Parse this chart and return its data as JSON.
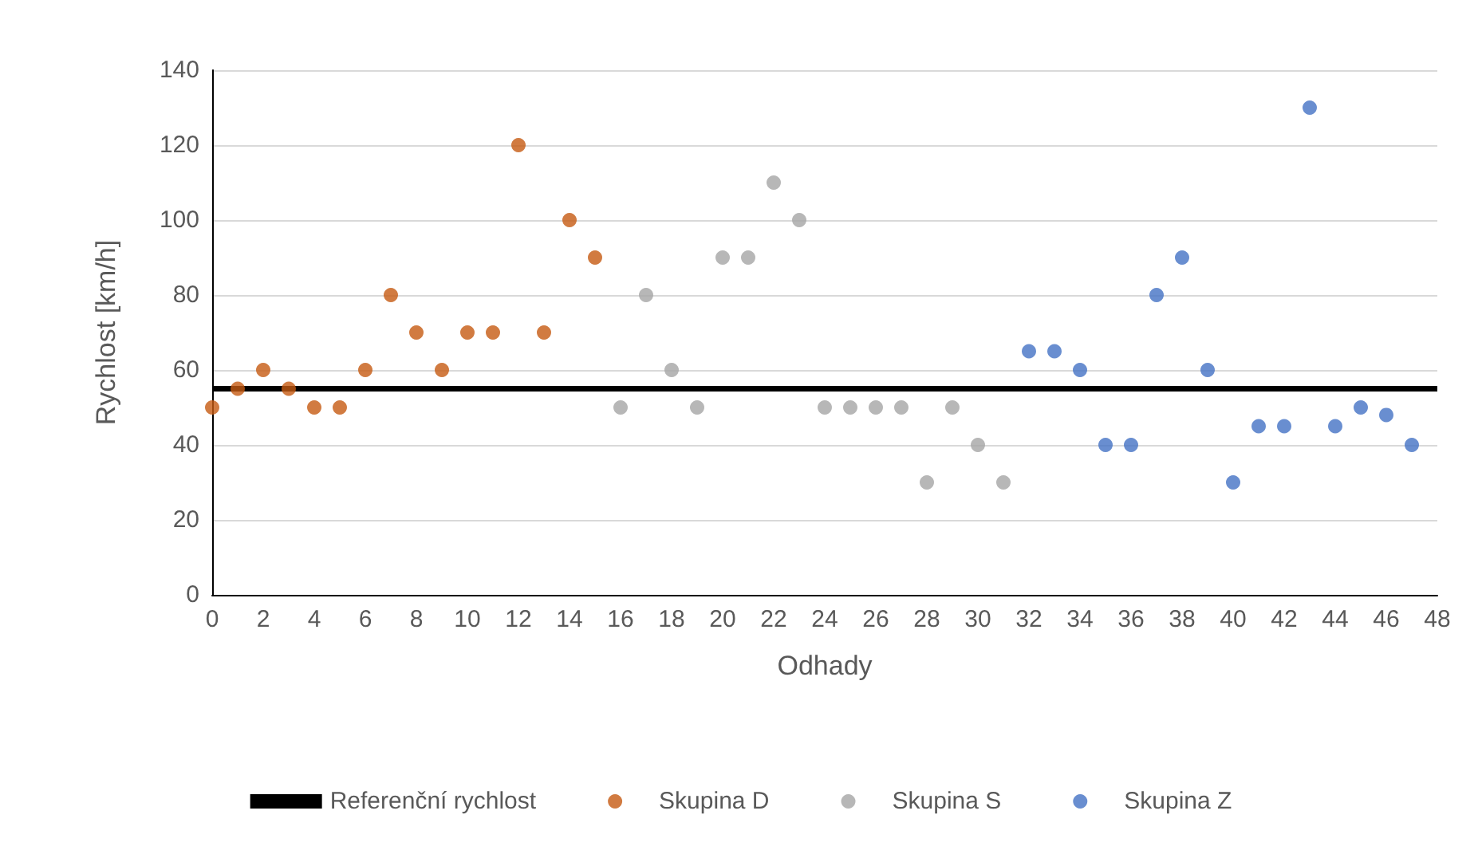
{
  "chart_data": {
    "type": "scatter",
    "xlabel": "Odhady",
    "ylabel": "Rychlost [km/h]",
    "xlim": [
      0,
      48
    ],
    "xticks": [
      0,
      2,
      4,
      6,
      8,
      10,
      12,
      14,
      16,
      18,
      20,
      22,
      24,
      26,
      28,
      30,
      32,
      34,
      36,
      38,
      40,
      42,
      44,
      46,
      48
    ],
    "ylim": [
      0,
      140
    ],
    "yticks": [
      0,
      20,
      40,
      60,
      80,
      100,
      120,
      140
    ],
    "grid": "y",
    "legend": "bottom",
    "marker": "circle",
    "series": [
      {
        "name": "Referenční rychlost",
        "type": "line",
        "color": "#000000",
        "line_style": "solid",
        "marker": "none",
        "x": [
          0,
          48
        ],
        "values": [
          55,
          55
        ]
      },
      {
        "name": "Skupina D",
        "color": "#c55a11",
        "x": [
          0,
          1,
          2,
          3,
          4,
          5,
          6,
          7,
          8,
          9,
          10,
          11,
          12,
          13,
          14,
          15
        ],
        "values": [
          50,
          55,
          60,
          55,
          50,
          50,
          60,
          80,
          70,
          60,
          70,
          70,
          120,
          70,
          100,
          90
        ]
      },
      {
        "name": "Skupina S",
        "color": "#a5a5a5",
        "x": [
          16,
          17,
          18,
          19,
          20,
          21,
          22,
          23,
          24,
          25,
          26,
          27,
          28,
          29,
          30,
          31
        ],
        "values": [
          50,
          80,
          60,
          50,
          90,
          90,
          110,
          100,
          50,
          50,
          50,
          50,
          30,
          50,
          40,
          30
        ]
      },
      {
        "name": "Skupina Z",
        "color": "#4472c4",
        "x": [
          32,
          33,
          34,
          35,
          36,
          37,
          38,
          39,
          40,
          41,
          42,
          43,
          44,
          45,
          46,
          47
        ],
        "values": [
          65,
          65,
          60,
          40,
          40,
          80,
          90,
          60,
          30,
          45,
          45,
          130,
          45,
          50,
          48,
          40
        ]
      }
    ]
  }
}
